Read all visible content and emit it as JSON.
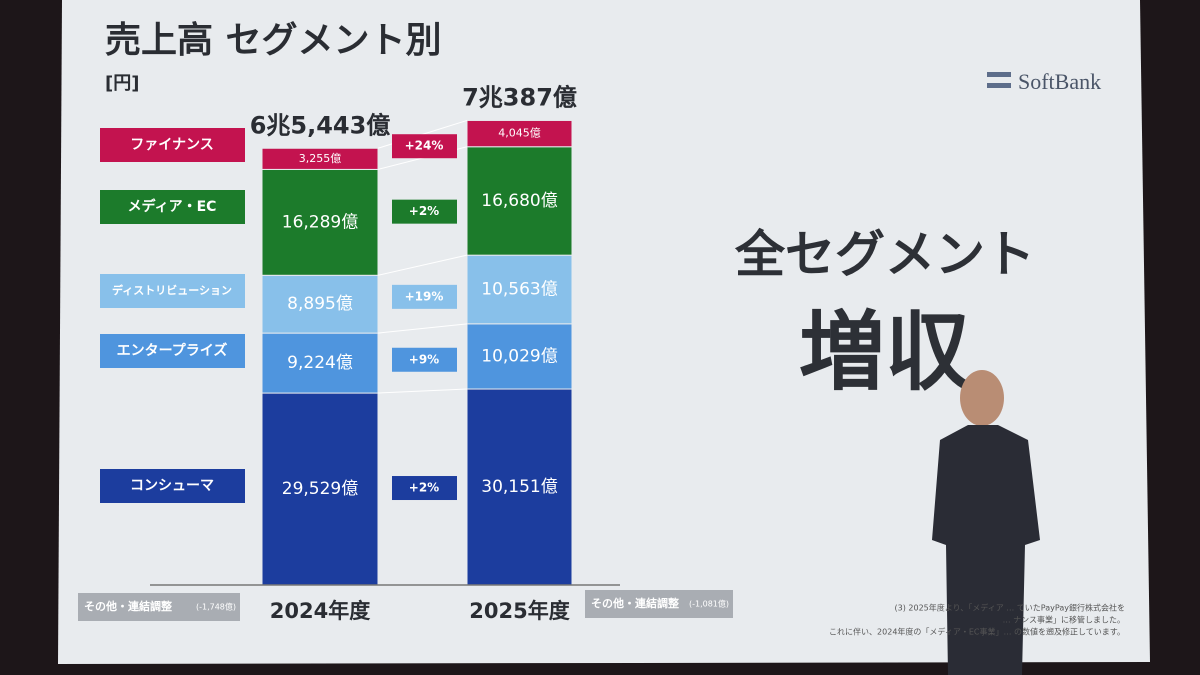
{
  "chart_data": {
    "type": "bar",
    "stacked": true,
    "title": "売上高 セグメント別",
    "unit_label": "[円]",
    "brand": "SoftBank",
    "headline": "全セグメント",
    "headline_big": "増収",
    "categories": [
      "2024年度",
      "2025年度"
    ],
    "series": [
      {
        "name": "コンシューマ",
        "color": "#1c3d9e",
        "values": [
          29529,
          30151
        ],
        "value_labels": [
          "29,529億",
          "30,151億"
        ],
        "growth": 2,
        "growth_label": "+2%"
      },
      {
        "name": "エンタープライズ",
        "color": "#4f95de",
        "values": [
          9224,
          10029
        ],
        "value_labels": [
          "9,224億",
          "10,029億"
        ],
        "growth": 9,
        "growth_label": "+9%"
      },
      {
        "name": "ディストリビューション",
        "color": "#88c0ea",
        "values": [
          8895,
          10563
        ],
        "value_labels": [
          "8,895億",
          "10,563億"
        ],
        "growth": 19,
        "growth_label": "+19%"
      },
      {
        "name": "メディア・EC",
        "color": "#1c7b2b",
        "values": [
          16289,
          16680
        ],
        "value_labels": [
          "16,289億",
          "16,680億"
        ],
        "growth": 2,
        "growth_label": "+2%"
      },
      {
        "name": "ファイナンス",
        "color": "#c3134f",
        "values": [
          3255,
          4045
        ],
        "value_labels": [
          "3,255億",
          "4,045億"
        ],
        "growth": 24,
        "growth_label": "+24%"
      }
    ],
    "totals": {
      "values": [
        65443,
        70387
      ],
      "value_labels": [
        "6兆5,443億",
        "7兆387億"
      ]
    },
    "adjustments": [
      {
        "label": "その他・連結調整",
        "value": -1748,
        "value_label": "(-1,748億)"
      },
      {
        "label": "その他・連結調整",
        "value": -1081,
        "value_label": "(-1,081億)"
      }
    ],
    "footnote": [
      "(3) 2025年度より、「メディア … ていたPayPay銀行株式会社を",
      "… ナンス事業」に移管しました。",
      "これに伴い、2024年度の「メディア・EC事業」… の数値を遡及修正しています。"
    ]
  }
}
